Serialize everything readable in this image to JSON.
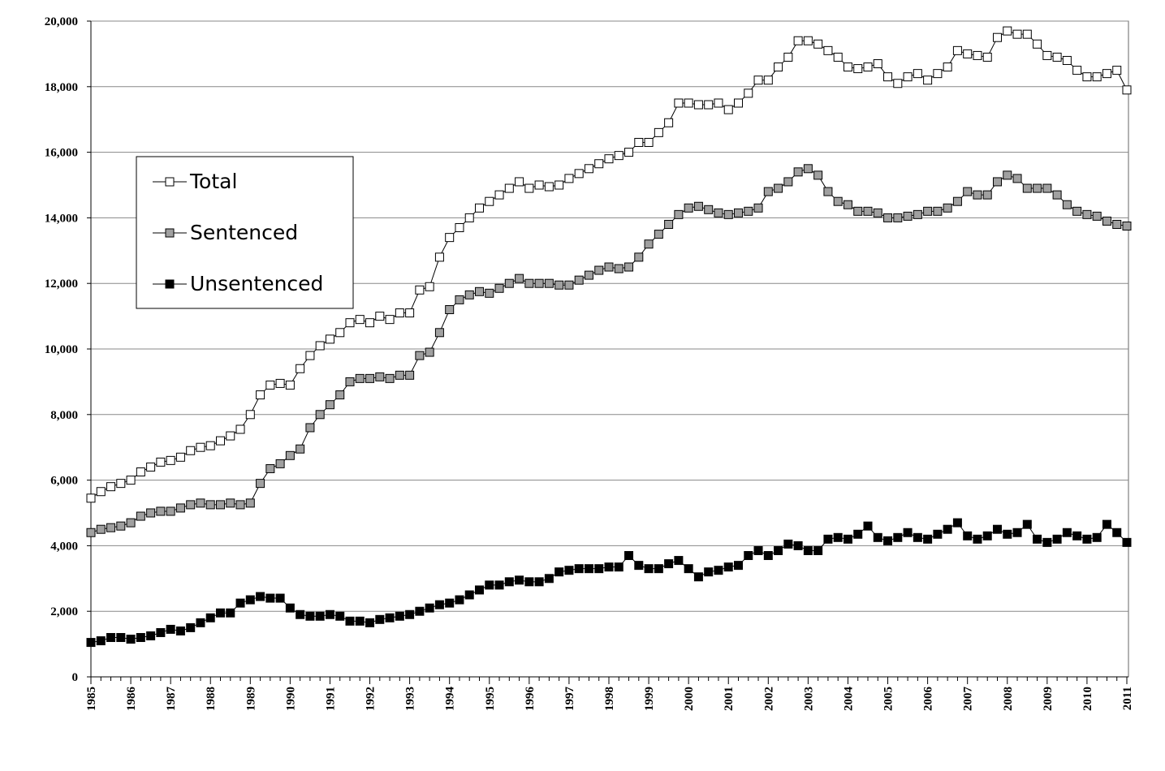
{
  "chart_data": {
    "type": "line",
    "categories": [
      "1985",
      null,
      null,
      null,
      "1986",
      null,
      null,
      null,
      "1987",
      null,
      null,
      null,
      "1988",
      null,
      null,
      null,
      "1989",
      null,
      null,
      null,
      "1990",
      null,
      null,
      null,
      "1991",
      null,
      null,
      null,
      "1992",
      null,
      null,
      null,
      "1993",
      null,
      null,
      null,
      "1994",
      null,
      null,
      null,
      "1995",
      null,
      null,
      null,
      "1996",
      null,
      null,
      null,
      "1997",
      null,
      null,
      null,
      "1998",
      null,
      null,
      null,
      "1999",
      null,
      null,
      null,
      "2000",
      null,
      null,
      null,
      "2001",
      null,
      null,
      null,
      "2002",
      null,
      null,
      null,
      "2003",
      null,
      null,
      null,
      "2004",
      null,
      null,
      null,
      "2005",
      null,
      null,
      null,
      "2006",
      null,
      null,
      null,
      "2007",
      null,
      null,
      null,
      "2008",
      null,
      null,
      null,
      "2009",
      null,
      null,
      null,
      "2010",
      null,
      null,
      null,
      "2011"
    ],
    "series": [
      {
        "name": "Total",
        "color": "#ffffff",
        "values": [
          5450,
          5650,
          5800,
          5900,
          6000,
          6250,
          6400,
          6550,
          6600,
          6700,
          6900,
          7000,
          7050,
          7200,
          7350,
          7550,
          8000,
          8600,
          8900,
          8950,
          8900,
          9400,
          9800,
          10100,
          10300,
          10500,
          10800,
          10900,
          10800,
          11000,
          10900,
          11100,
          11100,
          11800,
          11900,
          12800,
          13400,
          13700,
          14000,
          14300,
          14500,
          14700,
          14900,
          15100,
          14900,
          15000,
          14950,
          15000,
          15200,
          15350,
          15500,
          15650,
          15800,
          15900,
          16000,
          16300,
          16300,
          16600,
          16900,
          17500,
          17500,
          17450,
          17450,
          17500,
          17300,
          17500,
          17800,
          18200,
          18200,
          18600,
          18900,
          19400,
          19400,
          19300,
          19100,
          18900,
          18600,
          18550,
          18600,
          18700,
          18300,
          18100,
          18300,
          18400,
          18200,
          18400,
          18600,
          19100,
          19000,
          18950,
          18900,
          19500,
          19700,
          19600,
          19600,
          19300,
          18950,
          18900,
          18800,
          18500,
          18300,
          18300,
          18400,
          18500,
          17900
        ]
      },
      {
        "name": "Sentenced",
        "color": "#a0a0a0",
        "values": [
          4400,
          4500,
          4550,
          4600,
          4700,
          4900,
          5000,
          5050,
          5050,
          5150,
          5250,
          5300,
          5250,
          5250,
          5300,
          5250,
          5300,
          5900,
          6350,
          6500,
          6750,
          6950,
          7600,
          8000,
          8300,
          8600,
          9000,
          9100,
          9100,
          9150,
          9100,
          9200,
          9200,
          9800,
          9900,
          10500,
          11200,
          11500,
          11650,
          11750,
          11700,
          11850,
          12000,
          12150,
          12000,
          12000,
          12000,
          11950,
          11950,
          12100,
          12250,
          12400,
          12500,
          12450,
          12500,
          12800,
          13200,
          13500,
          13800,
          14100,
          14300,
          14350,
          14250,
          14150,
          14100,
          14150,
          14200,
          14300,
          14800,
          14900,
          15100,
          15400,
          15500,
          15300,
          14800,
          14500,
          14400,
          14200,
          14200,
          14150,
          14000,
          14000,
          14050,
          14100,
          14200,
          14200,
          14300,
          14500,
          14800,
          14700,
          14700,
          15100,
          15300,
          15200,
          14900,
          14900,
          14900,
          14700,
          14400,
          14200,
          14100,
          14050,
          13900,
          13800,
          13750
        ]
      },
      {
        "name": "Unsentenced",
        "color": "#000000",
        "values": [
          1050,
          1100,
          1200,
          1200,
          1150,
          1200,
          1250,
          1350,
          1450,
          1400,
          1500,
          1650,
          1800,
          1950,
          1950,
          2250,
          2350,
          2450,
          2400,
          2400,
          2100,
          1900,
          1850,
          1850,
          1900,
          1850,
          1700,
          1700,
          1650,
          1750,
          1800,
          1850,
          1900,
          2000,
          2100,
          2200,
          2250,
          2350,
          2500,
          2650,
          2800,
          2800,
          2900,
          2950,
          2900,
          2900,
          3000,
          3200,
          3250,
          3300,
          3300,
          3300,
          3350,
          3350,
          3700,
          3400,
          3300,
          3300,
          3450,
          3550,
          3300,
          3050,
          3200,
          3250,
          3350,
          3400,
          3700,
          3850,
          3700,
          3850,
          4050,
          4000,
          3850,
          3850,
          4200,
          4250,
          4200,
          4350,
          4600,
          4250,
          4150,
          4250,
          4400,
          4250,
          4200,
          4350,
          4500,
          4700,
          4300,
          4200,
          4300,
          4500,
          4350,
          4400,
          4650,
          4200,
          4100,
          4200,
          4400,
          4300,
          4200,
          4250,
          4650,
          4400,
          4100
        ]
      }
    ],
    "ylim": [
      0,
      20000
    ],
    "yticks": [
      0,
      {
        "value": 2000,
        "label": "2,000"
      },
      {
        "value": 4000,
        "label": "4,000"
      },
      {
        "value": 6000,
        "label": "6,000"
      },
      {
        "value": 8000,
        "label": "8,000"
      },
      {
        "value": 10000,
        "label": "10,000"
      },
      {
        "value": 12000,
        "label": "12,000"
      },
      {
        "value": 14000,
        "label": "14,000"
      },
      {
        "value": 16000,
        "label": "16,000"
      },
      {
        "value": 18000,
        "label": "18,000"
      },
      {
        "value": 20000,
        "label": "20,000"
      }
    ],
    "grid": true,
    "legend": "upper left"
  }
}
